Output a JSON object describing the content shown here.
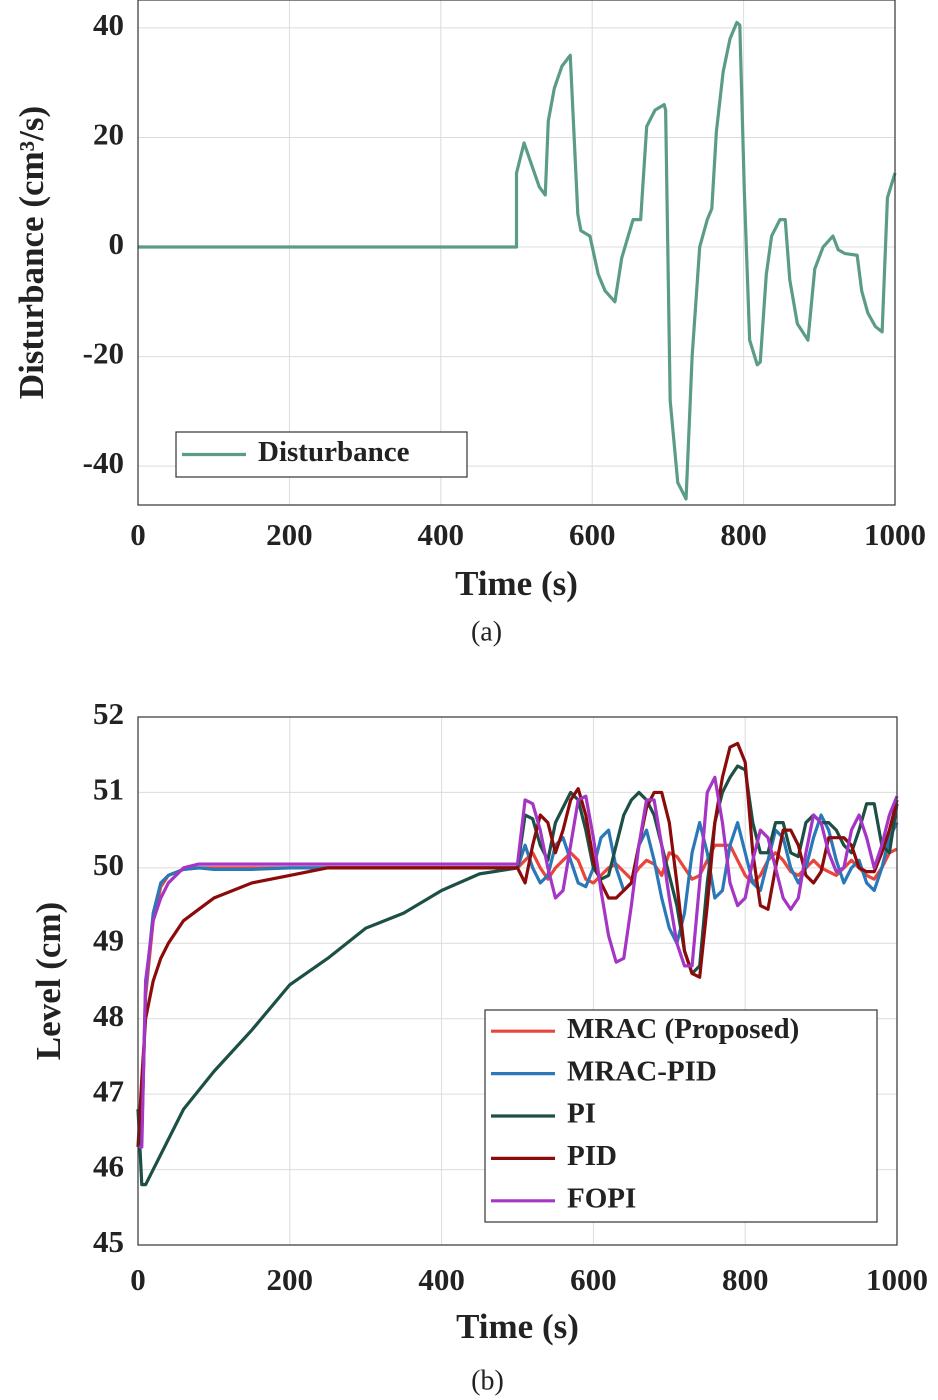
{
  "chart_data": [
    {
      "type": "line",
      "xlabel": "Time (s)",
      "ylabel": "Disturbance (cm³/s)",
      "caption": "(a)",
      "x": [
        0,
        500,
        500,
        510,
        520,
        530,
        538,
        542,
        550,
        560,
        571,
        581,
        585,
        597,
        608,
        617,
        630,
        639,
        654,
        664,
        672,
        683,
        695,
        697,
        703,
        713,
        724,
        732,
        742,
        752,
        758,
        764,
        773,
        782,
        791,
        795,
        801,
        808,
        818,
        822,
        830,
        837,
        848,
        855,
        861,
        871,
        885,
        894,
        905,
        918,
        925,
        934,
        950,
        956,
        964,
        974,
        983,
        990,
        1000
      ],
      "series": [
        {
          "name": "Disturbance",
          "color": "#5b9c84",
          "values": [
            0,
            0,
            13.5,
            19,
            15,
            11,
            9.5,
            23,
            29,
            33,
            35,
            6,
            3,
            2,
            -5,
            -8,
            -10,
            -2,
            5,
            5,
            22,
            25,
            26,
            25,
            -28,
            -43,
            -46,
            -20,
            0,
            5,
            7,
            21,
            32,
            38,
            41,
            40.5,
            10,
            -17,
            -21.5,
            -21,
            -5,
            2,
            5,
            5,
            -6,
            -14,
            -17,
            -4,
            0,
            2,
            -0.5,
            -1.2,
            -1.5,
            -8,
            -12,
            -14.5,
            -15.5,
            9,
            13.5
          ]
        }
      ],
      "xlim": [
        0,
        1000
      ],
      "xticks": [
        0,
        200,
        400,
        600,
        800,
        1000
      ],
      "ylim": [
        -47.1,
        45.1
      ],
      "yticks": [
        -40,
        -20,
        0,
        20,
        40
      ],
      "grid": true,
      "legend": "lower left"
    },
    {
      "type": "line",
      "xlabel": "Time (s)",
      "ylabel": "Level (cm)",
      "caption": "(b)",
      "x": [
        0,
        5,
        10,
        20,
        30,
        40,
        60,
        80,
        100,
        150,
        200,
        250,
        300,
        350,
        400,
        450,
        500,
        510,
        520,
        530,
        540,
        550,
        560,
        570,
        580,
        590,
        600,
        610,
        620,
        630,
        640,
        650,
        660,
        670,
        680,
        690,
        700,
        710,
        720,
        730,
        740,
        750,
        760,
        770,
        780,
        790,
        800,
        810,
        820,
        830,
        840,
        850,
        860,
        870,
        880,
        890,
        900,
        910,
        920,
        930,
        940,
        950,
        960,
        970,
        980,
        990,
        1000
      ],
      "series": [
        {
          "name": "MRAC (Proposed)",
          "color": "#e8453c",
          "values": [
            46.8,
            46.5,
            48.3,
            49.3,
            49.75,
            49.9,
            49.98,
            50,
            50,
            50,
            50,
            50,
            50,
            50,
            50,
            50,
            50,
            50.1,
            50.2,
            50,
            49.85,
            50,
            50.1,
            50.2,
            50.1,
            49.85,
            49.8,
            49.9,
            50,
            50.05,
            49.95,
            49.85,
            50,
            50.1,
            50.05,
            49.9,
            50.2,
            50.15,
            50,
            49.85,
            49.9,
            50.1,
            50.3,
            50.3,
            50.3,
            50.1,
            49.9,
            49.8,
            49.9,
            50.1,
            50.2,
            50.1,
            49.95,
            49.9,
            50,
            50.1,
            50,
            49.95,
            49.9,
            50,
            50.1,
            50,
            49.9,
            49.85,
            50,
            50.2,
            50.25
          ]
        },
        {
          "name": "MRAC-PID",
          "color": "#2a78b8",
          "values": [
            46.8,
            46.5,
            48.4,
            49.4,
            49.8,
            49.9,
            49.98,
            50,
            49.98,
            49.98,
            50,
            50,
            50,
            50,
            50,
            50,
            50,
            50.3,
            50,
            49.8,
            49.9,
            50.3,
            50.4,
            50.1,
            49.8,
            49.75,
            50,
            50.4,
            50.5,
            50,
            49.7,
            49.8,
            50.3,
            50.5,
            50.1,
            49.6,
            49.2,
            49,
            49.4,
            50.2,
            50.6,
            50.2,
            49.6,
            49.7,
            50.3,
            50.6,
            50.2,
            49.8,
            49.7,
            50.1,
            50.5,
            50.4,
            50,
            49.8,
            50,
            50.4,
            50.7,
            50.5,
            50.1,
            49.8,
            50,
            50.1,
            49.8,
            49.7,
            50,
            50.4,
            50.6
          ]
        },
        {
          "name": "PI",
          "color": "#1c4f45",
          "values": [
            46.8,
            45.8,
            45.8,
            46,
            46.2,
            46.4,
            46.8,
            47.05,
            47.3,
            47.85,
            48.45,
            48.8,
            49.2,
            49.4,
            49.7,
            49.92,
            50,
            50.7,
            50.65,
            50.3,
            50.1,
            50.6,
            50.8,
            51,
            50.9,
            50.5,
            50,
            49.85,
            49.9,
            50.3,
            50.7,
            50.9,
            51,
            50.9,
            50.7,
            50.3,
            49.9,
            49.5,
            48.9,
            48.6,
            48.7,
            49.8,
            50.6,
            51,
            51.2,
            51.35,
            51.3,
            50.6,
            50.2,
            50.2,
            50.6,
            50.6,
            50.2,
            50.15,
            50.6,
            50.7,
            50.6,
            50.6,
            50.5,
            50.3,
            50.2,
            50.5,
            50.85,
            50.85,
            50.3,
            50.2,
            50.85
          ]
        },
        {
          "name": "PID",
          "color": "#8b0a0a",
          "values": [
            46.3,
            47.2,
            48,
            48.5,
            48.8,
            49,
            49.3,
            49.45,
            49.6,
            49.8,
            49.9,
            50,
            50,
            50,
            50,
            50,
            50,
            49.8,
            50.3,
            50.7,
            50.6,
            50.2,
            50.5,
            50.9,
            51.05,
            50.7,
            50.1,
            49.8,
            49.6,
            49.6,
            49.7,
            49.8,
            50.3,
            50.8,
            51,
            51,
            50.6,
            49.8,
            48.9,
            48.6,
            48.55,
            49.5,
            50.6,
            51.2,
            51.6,
            51.65,
            51.4,
            50.2,
            49.5,
            49.45,
            50,
            50.5,
            50.5,
            50.3,
            49.9,
            49.8,
            49.95,
            50.4,
            50.4,
            50.4,
            50.3,
            50,
            49.95,
            49.95,
            50.2,
            50.5,
            50.9
          ]
        },
        {
          "name": "FOPI",
          "color": "#a535c4",
          "values": [
            46.3,
            46.3,
            48.5,
            49.3,
            49.6,
            49.8,
            50,
            50.05,
            50.05,
            50.05,
            50.05,
            50.05,
            50.05,
            50.05,
            50.05,
            50.05,
            50.05,
            50.9,
            50.85,
            50.5,
            50,
            49.6,
            49.7,
            50.3,
            50.9,
            50.95,
            50.4,
            49.7,
            49.1,
            48.75,
            48.8,
            49.5,
            50.3,
            50.9,
            50.9,
            50.3,
            49.6,
            49,
            48.7,
            48.7,
            49.8,
            51,
            51.2,
            50.6,
            49.8,
            49.5,
            49.6,
            50.1,
            50.5,
            50.4,
            50,
            49.6,
            49.45,
            49.6,
            50.2,
            50.7,
            50.6,
            50.2,
            49.95,
            50,
            50.5,
            50.7,
            50.4,
            50,
            50.3,
            50.7,
            50.95
          ]
        }
      ],
      "xlim": [
        0,
        1000
      ],
      "xticks": [
        0,
        200,
        400,
        600,
        800,
        1000
      ],
      "ylim": [
        45,
        52
      ],
      "yticks": [
        45,
        46,
        47,
        48,
        49,
        50,
        51,
        52
      ],
      "grid": true,
      "legend": "lower right"
    }
  ]
}
